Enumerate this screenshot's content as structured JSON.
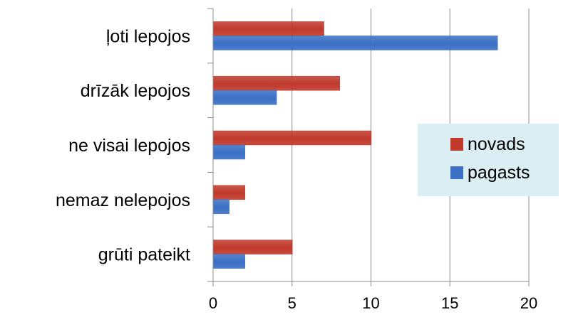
{
  "chart_data": {
    "type": "bar",
    "orientation": "horizontal",
    "categories": [
      "ļoti lepojos",
      "drīzāk lepojos",
      "ne visai lepojos",
      "nemaz nelepojos",
      "grūti pateikt"
    ],
    "series": [
      {
        "name": "novads",
        "values": [
          7,
          8,
          10,
          2,
          5
        ],
        "color": "#c0392b"
      },
      {
        "name": "pagasts",
        "values": [
          18,
          4,
          2,
          1,
          2
        ],
        "color": "#3a6fc4"
      }
    ],
    "xlim": [
      0,
      20
    ],
    "xticks": [
      "0",
      "5",
      "10",
      "15",
      "20"
    ],
    "grid": true,
    "legend_position": "right",
    "legend_background": "#dbeef3",
    "title": "",
    "xlabel": "",
    "ylabel": ""
  }
}
